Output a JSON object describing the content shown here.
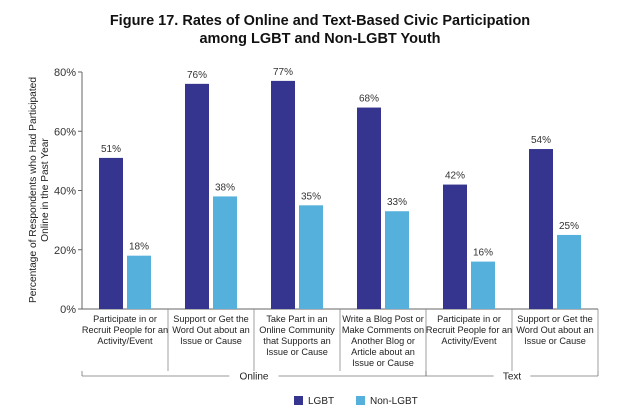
{
  "chart_data": {
    "type": "bar",
    "title_line1": "Figure 17. Rates of Online and Text-Based Civic Participation",
    "title_line2": "among LGBT and Non-LGBT Youth",
    "ylabel_line1": "Percentage of Respondents who Had Participated",
    "ylabel_line2": "Online in the Past Year",
    "ylim": [
      0,
      80
    ],
    "y_ticks": [
      "0%",
      "20%",
      "40%",
      "60%",
      "80%"
    ],
    "categories": [
      [
        "Participate in or",
        "Recruit People for an",
        "Activity/Event"
      ],
      [
        "Support or Get the",
        "Word Out about an",
        "Issue or Cause"
      ],
      [
        "Take Part in an",
        "Online Community",
        "that Supports an",
        "Issue or Cause"
      ],
      [
        "Write a Blog Post or",
        "Make Comments on",
        "Another Blog or",
        "Article  about an",
        "Issue or Cause"
      ],
      [
        "Participate in or",
        "Recruit People for an",
        "Activity/Event"
      ],
      [
        "Support or Get the",
        "Word Out about an",
        "Issue or Cause"
      ]
    ],
    "groups": [
      {
        "label": "Online",
        "categories": [
          0,
          1,
          2,
          3
        ]
      },
      {
        "label": "Text",
        "categories": [
          4,
          5
        ]
      }
    ],
    "series": [
      {
        "name": "LGBT",
        "color": "#35358f",
        "values": [
          51,
          76,
          77,
          68,
          42,
          54
        ],
        "labels": [
          "51%",
          "76%",
          "77%",
          "68%",
          "42%",
          "54%"
        ]
      },
      {
        "name": "Non-LGBT",
        "color": "#55b0dc",
        "values": [
          18,
          38,
          35,
          33,
          16,
          25
        ],
        "labels": [
          "18%",
          "38%",
          "35%",
          "33%",
          "16%",
          "25%"
        ]
      }
    ],
    "grid": false,
    "legend": "bottom-center"
  }
}
